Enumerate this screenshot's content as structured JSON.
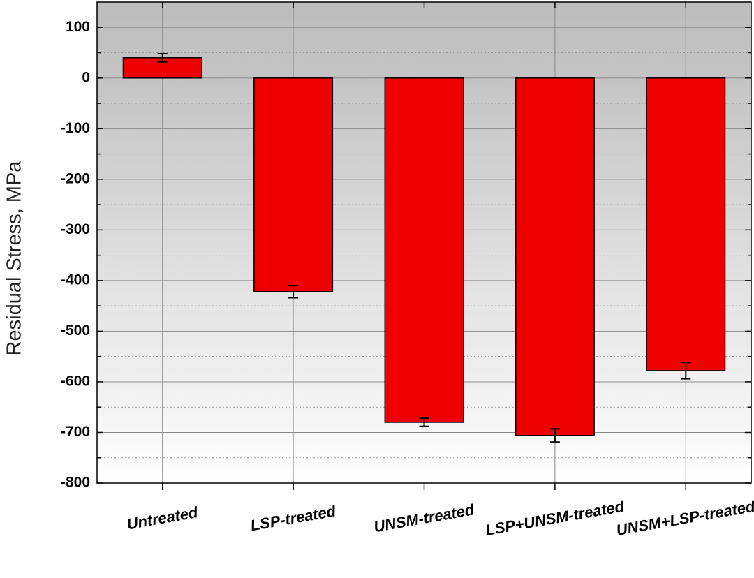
{
  "chart_data": {
    "type": "bar",
    "ylabel": "Residual Stress, MPa",
    "categories": [
      "Untreated",
      "LSP-treated",
      "UNSM-treated",
      "LSP+UNSM-treated",
      "UNSM+LSP-treated"
    ],
    "values": [
      40,
      -422,
      -680,
      -706,
      -578
    ],
    "errors": [
      8,
      12,
      8,
      13,
      16
    ],
    "color": "#ee0000",
    "ylim": [
      -800,
      150
    ],
    "yticks": [
      -800,
      -700,
      -600,
      -500,
      -400,
      -300,
      -200,
      -100,
      0,
      100
    ],
    "minor_yticks": [
      -750,
      -650,
      -550,
      -450,
      -350,
      -250,
      -150,
      -50,
      50
    ],
    "grid": true
  }
}
